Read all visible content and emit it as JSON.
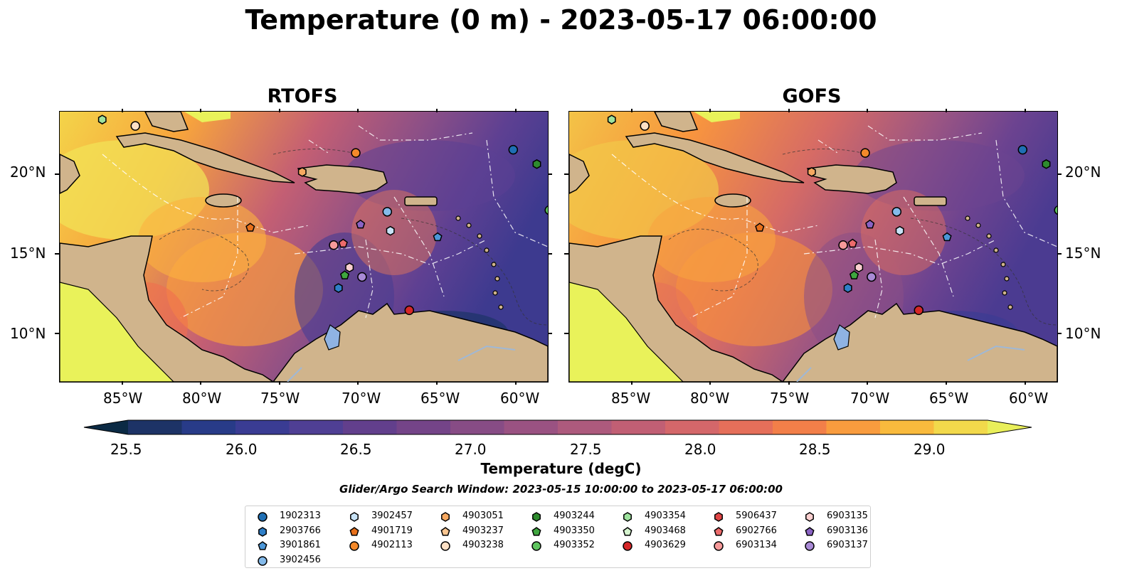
{
  "title": "Temperature (0 m) - 2023-05-17 06:00:00",
  "panels": [
    {
      "title": "RTOFS"
    },
    {
      "title": "GOFS"
    }
  ],
  "lon_ticks": [
    "85°W",
    "80°W",
    "75°W",
    "70°W",
    "65°W",
    "60°W"
  ],
  "lat_ticks": [
    "20°N",
    "15°N",
    "10°N"
  ],
  "colorbar": {
    "label": "Temperature (degC)",
    "ticks": [
      "25.5",
      "26.0",
      "26.5",
      "27.0",
      "27.5",
      "28.0",
      "28.5",
      "29.0"
    ],
    "colors": [
      "#0b2a44",
      "#1d3366",
      "#283b88",
      "#3a3c93",
      "#4f3f94",
      "#623f8c",
      "#744488",
      "#874c85",
      "#9a5282",
      "#ad5a7d",
      "#c15f74",
      "#d4676a",
      "#e56f5a",
      "#f27f49",
      "#f99c3e",
      "#f9ba3d",
      "#f2d94b",
      "#e9ef5a"
    ]
  },
  "search_window": "Glider/Argo Search Window: 2023-05-15 10:00:00 to 2023-05-17 06:00:00",
  "legend": [
    {
      "id": "1902313",
      "shape": "circle",
      "color": "#1f6fb4"
    },
    {
      "id": "2903766",
      "shape": "hexagon",
      "color": "#2f7fc8"
    },
    {
      "id": "3901861",
      "shape": "pentagon",
      "color": "#4c97d8"
    },
    {
      "id": "3902456",
      "shape": "circle",
      "color": "#84baea"
    },
    {
      "id": "3902457",
      "shape": "hexagon",
      "color": "#c8e3f7"
    },
    {
      "id": "4901719",
      "shape": "pentagon",
      "color": "#e8701a"
    },
    {
      "id": "4902113",
      "shape": "circle",
      "color": "#f4892a"
    },
    {
      "id": "4903051",
      "shape": "hexagon",
      "color": "#f6a860"
    },
    {
      "id": "4903237",
      "shape": "pentagon",
      "color": "#f9c590"
    },
    {
      "id": "4903238",
      "shape": "circle",
      "color": "#fde0c5"
    },
    {
      "id": "4903244",
      "shape": "hexagon",
      "color": "#2e8b2e"
    },
    {
      "id": "4903350",
      "shape": "pentagon",
      "color": "#3fa63f"
    },
    {
      "id": "4903352",
      "shape": "circle",
      "color": "#5ec45e"
    },
    {
      "id": "4903354",
      "shape": "hexagon",
      "color": "#9ee39e"
    },
    {
      "id": "4903468",
      "shape": "pentagon",
      "color": "#d6f5cf"
    },
    {
      "id": "4903629",
      "shape": "circle",
      "color": "#d62728"
    },
    {
      "id": "5906437",
      "shape": "hexagon",
      "color": "#e04545"
    },
    {
      "id": "6902766",
      "shape": "pentagon",
      "color": "#ec6b6b"
    },
    {
      "id": "6903134",
      "shape": "circle",
      "color": "#f79a9a"
    },
    {
      "id": "6903135",
      "shape": "hexagon",
      "color": "#fbd0d0"
    },
    {
      "id": "6903136",
      "shape": "pentagon",
      "color": "#8a63c4"
    },
    {
      "id": "6903137",
      "shape": "circle",
      "color": "#a98ad6"
    }
  ],
  "markers": [
    {
      "id": "4903354",
      "lon": -86.3,
      "lat": 23.5
    },
    {
      "id": "4903238",
      "lon": -84.2,
      "lat": 23.1
    },
    {
      "id": "1902313",
      "lon": -60.2,
      "lat": 21.6
    },
    {
      "id": "4903244",
      "lon": -58.7,
      "lat": 20.7
    },
    {
      "id": "4902113",
      "lon": -70.2,
      "lat": 21.4
    },
    {
      "id": "4903051",
      "lon": -73.6,
      "lat": 20.2
    },
    {
      "id": "3902456",
      "lon": -68.2,
      "lat": 17.7
    },
    {
      "id": "4903352",
      "lon": -57.9,
      "lat": 17.8
    },
    {
      "id": "4901719",
      "lon": -76.9,
      "lat": 16.7
    },
    {
      "id": "6903136",
      "lon": -69.9,
      "lat": 16.9
    },
    {
      "id": "3902457",
      "lon": -68.0,
      "lat": 16.5
    },
    {
      "id": "3901861",
      "lon": -65.0,
      "lat": 16.1
    },
    {
      "id": "6903134",
      "lon": -71.6,
      "lat": 15.6
    },
    {
      "id": "6902766",
      "lon": -71.0,
      "lat": 15.7
    },
    {
      "id": "6903135",
      "lon": -70.6,
      "lat": 14.2
    },
    {
      "id": "4903350",
      "lon": -70.9,
      "lat": 13.7
    },
    {
      "id": "6903137",
      "lon": -69.8,
      "lat": 13.6
    },
    {
      "id": "2903766",
      "lon": -71.3,
      "lat": 12.9
    },
    {
      "id": "4903629",
      "lon": -66.8,
      "lat": 11.5
    }
  ]
}
